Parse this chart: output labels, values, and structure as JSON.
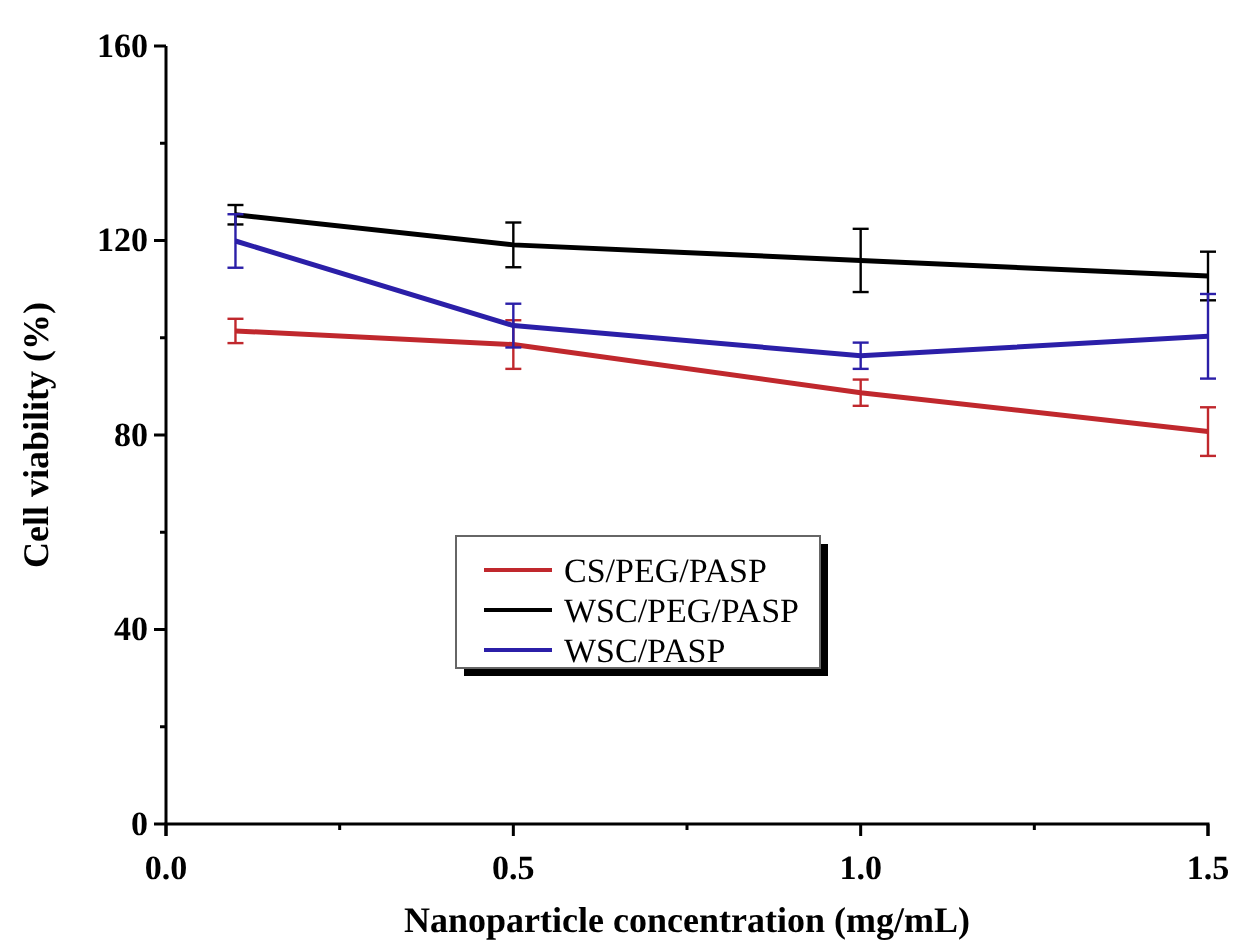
{
  "chart_data": {
    "type": "line",
    "xlabel": "Nanoparticle concentration (mg/mL)",
    "ylabel": "Cell viability (%)",
    "x": [
      0.1,
      0.5,
      1.0,
      1.5
    ],
    "xlim": [
      0,
      1.5
    ],
    "xticks": [
      {
        "value": 0,
        "label": "0.0"
      },
      {
        "value": 0.25,
        "label": null
      },
      {
        "value": 0.5,
        "label": "0.5"
      },
      {
        "value": 0.75,
        "label": null
      },
      {
        "value": 1.0,
        "label": "1.0"
      },
      {
        "value": 1.25,
        "label": null
      },
      {
        "value": 1.5,
        "label": "1.5"
      }
    ],
    "ylim": [
      0,
      160
    ],
    "yticks": [
      0,
      {
        "value": 20,
        "label": null
      },
      40,
      {
        "value": 60,
        "label": null
      },
      80,
      {
        "value": 100,
        "label": null
      },
      120,
      {
        "value": 140,
        "label": null
      },
      160
    ],
    "series": [
      {
        "name": "CS/PEG/PASP",
        "color": "#c0282d",
        "values": [
          101.4,
          98.6,
          88.7,
          80.7
        ],
        "errors": [
          2.5,
          5,
          2.7,
          5
        ]
      },
      {
        "name": "WSC/PEG/PASP",
        "color": "#000000",
        "values": [
          125.3,
          119.1,
          115.9,
          112.7
        ],
        "errors": [
          2,
          4.6,
          6.5,
          5
        ]
      },
      {
        "name": "WSC/PASP",
        "color": "#2b1fa8",
        "values": [
          119.9,
          102.5,
          96.3,
          100.3
        ],
        "errors": [
          5.5,
          4.5,
          2.7,
          8.7
        ]
      }
    ],
    "legend": "center",
    "grid": false,
    "marker": "none",
    "line_style": "solid"
  }
}
